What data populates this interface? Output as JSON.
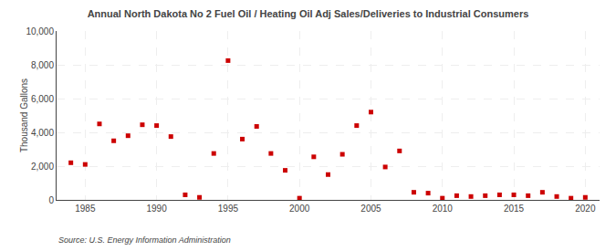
{
  "chart_data": {
    "type": "scatter",
    "title": "Annual North Dakota No 2 Fuel Oil / Heating Oil Adj Sales/Deliveries to Industrial Consumers",
    "ylabel": "Thousand Gallons",
    "source": "Source: U.S. Energy Information Administration",
    "x": [
      1984,
      1985,
      1986,
      1987,
      1988,
      1989,
      1990,
      1991,
      1992,
      1993,
      1994,
      1995,
      1996,
      1997,
      1998,
      1999,
      2000,
      2001,
      2002,
      2003,
      2004,
      2005,
      2006,
      2007,
      2008,
      2009,
      2010,
      2011,
      2012,
      2013,
      2014,
      2015,
      2016,
      2017,
      2018,
      2019,
      2020
    ],
    "values": [
      2200,
      2100,
      4500,
      3500,
      3800,
      4450,
      4400,
      3750,
      300,
      150,
      2750,
      8250,
      3600,
      4350,
      2750,
      1750,
      100,
      2550,
      1500,
      2700,
      4400,
      5200,
      1950,
      2900,
      450,
      400,
      100,
      250,
      200,
      250,
      300,
      300,
      250,
      450,
      200,
      100,
      150
    ],
    "color": "#cc0000",
    "marker": "square",
    "xlim": [
      1983,
      2021
    ],
    "ylim": [
      0,
      10000
    ],
    "xticks": [
      1985,
      1990,
      1995,
      2000,
      2005,
      2010,
      2015,
      2020
    ],
    "yticks": [
      0,
      {
        "value": 2000,
        "label": "2,000"
      },
      {
        "value": 4000,
        "label": "4,000"
      },
      {
        "value": 6000,
        "label": "6,000"
      },
      {
        "value": 8000,
        "label": "8,000"
      },
      {
        "value": 10000,
        "label": "10,000"
      }
    ],
    "grid": true
  }
}
